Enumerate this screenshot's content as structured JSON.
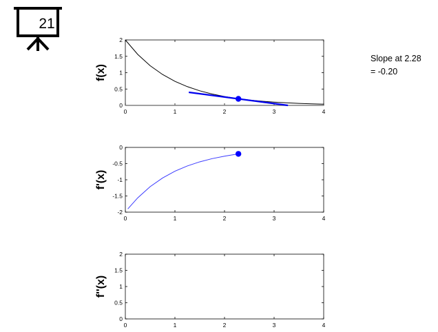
{
  "badge": {
    "icon": "presentation-board-icon",
    "number": "21"
  },
  "annotation": {
    "line1": "Slope at 2.28",
    "line2": "= -0.20"
  },
  "colors": {
    "function": "#000000",
    "derivative": "#3a3aff",
    "tangent": "#0000ee",
    "marker": "#0000ff",
    "zero_line": "#808080"
  },
  "chart_data": [
    {
      "type": "line",
      "ylabel": "f(x)",
      "xlim": [
        0,
        4
      ],
      "ylim": [
        0,
        2
      ],
      "xticks": [
        "0",
        "1",
        "2",
        "3",
        "4"
      ],
      "yticks": [
        "0",
        "0.5",
        "1",
        "1.5",
        "2"
      ],
      "series": [
        {
          "x": [
            0,
            0.25,
            0.5,
            0.75,
            1,
            1.25,
            1.5,
            1.75,
            2,
            2.25,
            2.5,
            2.75,
            3,
            3.25,
            3.5,
            3.75,
            4
          ],
          "y": [
            2.0,
            1.558,
            1.213,
            0.945,
            0.736,
            0.573,
            0.446,
            0.347,
            0.271,
            0.211,
            0.164,
            0.128,
            0.1,
            0.078,
            0.06,
            0.047,
            0.037
          ]
        }
      ],
      "tangent": {
        "x": [
          1.28,
          3.28
        ],
        "y": [
          0.4,
          0.0
        ]
      },
      "marker": {
        "x": 2.28,
        "y": 0.2
      }
    },
    {
      "type": "line",
      "ylabel": "f'(x)",
      "xlim": [
        0,
        4
      ],
      "ylim": [
        -2,
        0
      ],
      "xticks": [
        "0",
        "1",
        "2",
        "3",
        "4"
      ],
      "yticks": [
        "0",
        "-0.5",
        "-1",
        "-1.5",
        "-2"
      ],
      "series": [
        {
          "x": [
            0.05,
            0.25,
            0.5,
            0.75,
            1,
            1.25,
            1.5,
            1.75,
            2,
            2.28
          ],
          "y": [
            -1.9,
            -1.558,
            -1.213,
            -0.945,
            -0.736,
            -0.573,
            -0.446,
            -0.347,
            -0.271,
            -0.2
          ]
        }
      ],
      "marker": {
        "x": 2.28,
        "y": -0.2
      }
    },
    {
      "type": "line",
      "ylabel": "f''(x)",
      "xlim": [
        0,
        4
      ],
      "ylim": [
        0,
        2
      ],
      "xticks": [
        "0",
        "1",
        "2",
        "3",
        "4"
      ],
      "yticks": [
        "0",
        "0.5",
        "1",
        "1.5",
        "2"
      ],
      "series": []
    }
  ]
}
